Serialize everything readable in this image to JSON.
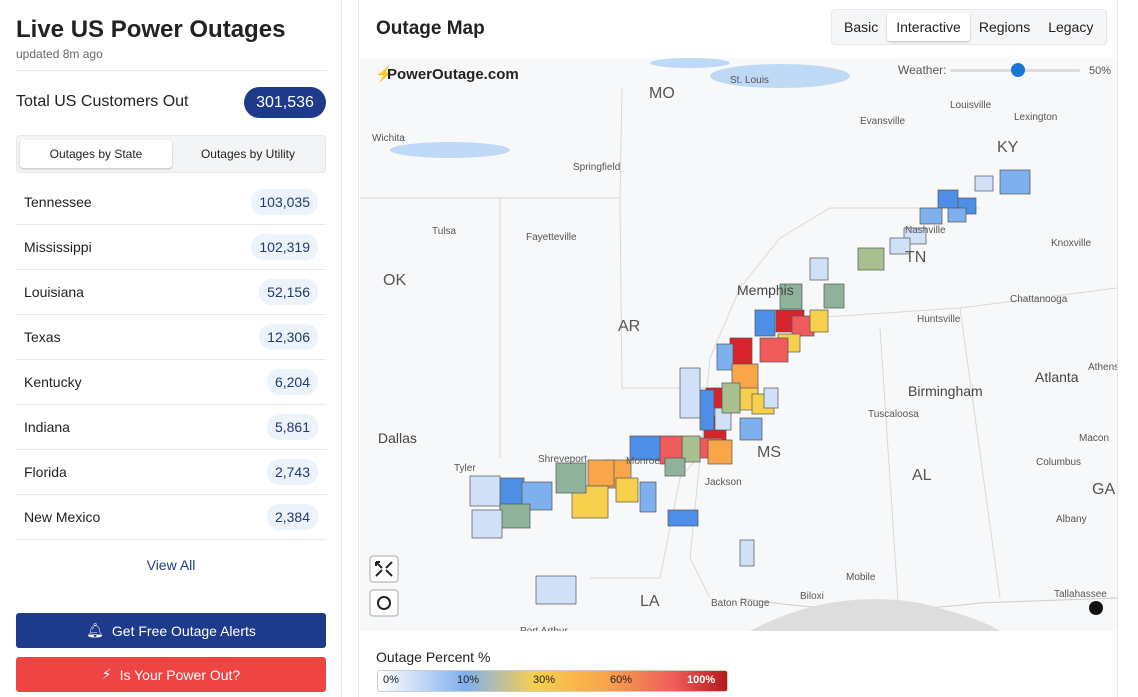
{
  "sidebar": {
    "title": "Live US Power Outages",
    "updated": "updated 8m ago",
    "total_label": "Total US Customers Out",
    "total": "301,536",
    "tabs": [
      "Outages by State",
      "Outages by Utility"
    ],
    "rows": [
      {
        "name": "Tennessee",
        "count": "103,035"
      },
      {
        "name": "Mississippi",
        "count": "102,319"
      },
      {
        "name": "Louisiana",
        "count": "52,156"
      },
      {
        "name": "Texas",
        "count": "12,306"
      },
      {
        "name": "Kentucky",
        "count": "6,204"
      },
      {
        "name": "Indiana",
        "count": "5,861"
      },
      {
        "name": "Florida",
        "count": "2,743"
      },
      {
        "name": "New Mexico",
        "count": "2,384"
      }
    ],
    "view_all": "View All",
    "buttons": [
      "Get Free Outage Alerts",
      "Is Your Power Out?"
    ]
  },
  "map": {
    "title": "Outage Map",
    "view_tabs": [
      "Basic",
      "Interactive",
      "Regions",
      "Legacy"
    ],
    "brand": "PowerOutage.com",
    "weather_label": "Weather:",
    "weather_value": "50%",
    "labels": [
      "St. Louis",
      "MO",
      "Louisville",
      "Lexington",
      "Evansville",
      "Wichita",
      "Springfield",
      "KY",
      "Nashville",
      "Tulsa",
      "Fayetteville",
      "Knoxville",
      "TN",
      "OK",
      "Memphis",
      "Chattanooga",
      "AR",
      "Huntsville",
      "Atlanta",
      "Athens",
      "Birmingham",
      "Tuscaloosa",
      "Dallas",
      "Macon",
      "MS",
      "Shreveport",
      "Tyler",
      "Monroe",
      "Columbus",
      "Jackson",
      "AL",
      "GA",
      "Albany",
      "Mobile",
      "LA",
      "Baton Rouge",
      "Biloxi",
      "Tallahassee",
      "Port Arthur"
    ],
    "legend_title": "Outage Percent %",
    "legend_ticks": [
      "0%",
      "10%",
      "30%",
      "60%",
      "100%"
    ]
  }
}
